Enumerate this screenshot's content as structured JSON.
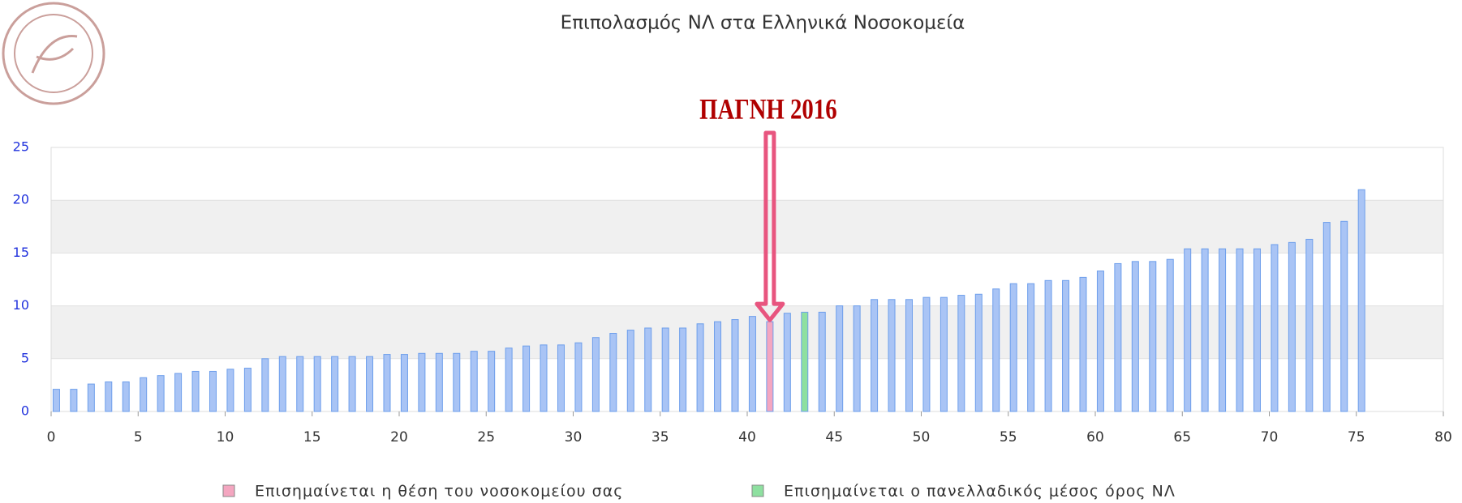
{
  "chart_data": {
    "type": "bar",
    "title": "Επιπολασμός ΝΛ στα Ελληνικά Νοσοκομεία",
    "annotation": "ΠΑΓΝΗ 2016",
    "annotation_color": "#b00000",
    "arrow_color": "#e8557f",
    "x": [
      0.3,
      1.3,
      2.3,
      3.3,
      4.3,
      5.3,
      6.3,
      7.3,
      8.3,
      9.3,
      10.3,
      11.3,
      12.3,
      13.3,
      14.3,
      15.3,
      16.3,
      17.3,
      18.3,
      19.3,
      20.3,
      21.3,
      22.3,
      23.3,
      24.3,
      25.3,
      26.3,
      27.3,
      28.3,
      29.3,
      30.3,
      31.3,
      32.3,
      33.3,
      34.3,
      35.3,
      36.3,
      37.3,
      38.3,
      39.3,
      40.3,
      41.3,
      42.3,
      43.3,
      44.3,
      45.3,
      46.3,
      47.3,
      48.3,
      49.3,
      50.3,
      51.3,
      52.3,
      53.3,
      54.3,
      55.3,
      56.3,
      57.3,
      58.3,
      59.3,
      60.3,
      61.3,
      62.3,
      63.3,
      64.3,
      65.3,
      66.3,
      67.3,
      68.3,
      69.3,
      70.3,
      71.3,
      72.3,
      73.3,
      74.3,
      75.3
    ],
    "values": [
      2.1,
      2.1,
      2.6,
      2.8,
      2.8,
      3.2,
      3.4,
      3.6,
      3.8,
      3.8,
      4.0,
      4.1,
      5.0,
      5.2,
      5.2,
      5.2,
      5.2,
      5.2,
      5.2,
      5.4,
      5.4,
      5.5,
      5.5,
      5.5,
      5.7,
      5.7,
      6.0,
      6.2,
      6.3,
      6.3,
      6.5,
      7.0,
      7.4,
      7.7,
      7.9,
      7.9,
      7.9,
      8.3,
      8.5,
      8.7,
      9.0,
      8.5,
      9.3,
      9.4,
      9.4,
      10.0,
      10.0,
      10.6,
      10.6,
      10.6,
      10.8,
      10.8,
      11.0,
      11.1,
      11.6,
      12.1,
      12.1,
      12.4,
      12.4,
      12.7,
      13.3,
      14.0,
      14.2,
      14.2,
      14.4,
      15.4,
      15.4,
      15.4,
      15.4,
      15.4,
      15.8,
      16.0,
      16.3,
      17.9,
      18.0,
      21.0
    ],
    "color": "#a9c4f5",
    "edge_color": "#6d9eeb",
    "highlights": [
      {
        "name": "Επισημαίνεται η θέση του νοσοκομείου σας",
        "color": "#f4a6c0",
        "index": 41
      },
      {
        "name": "Επισημαίνεται ο πανελλαδικός μέσος όρος ΝΛ",
        "color": "#8ee0a0",
        "index": 43
      }
    ],
    "annotation_index": 41,
    "xlim": [
      0,
      80
    ],
    "xticks": [
      0,
      5,
      10,
      15,
      20,
      25,
      30,
      35,
      40,
      45,
      50,
      55,
      60,
      65,
      70,
      75,
      80
    ],
    "ylim": [
      0,
      25
    ],
    "yticks": [
      0,
      5,
      10,
      15,
      20,
      25
    ],
    "grid": true,
    "grid_bands": true,
    "legend": "bottom"
  }
}
